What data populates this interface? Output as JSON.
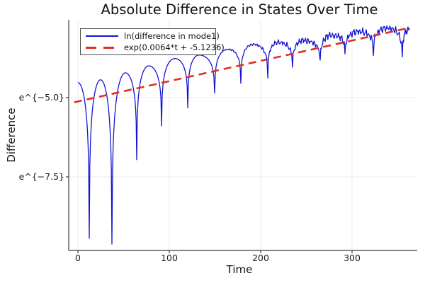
{
  "figure": {
    "title": "Absolute Difference in States Over Time",
    "xlabel": "Time",
    "ylabel": "Difference"
  },
  "colors": {
    "blue_line": "#1414d2",
    "red_line": "#e0301e"
  },
  "chart_data": {
    "type": "line",
    "title": "Absolute Difference in States Over Time",
    "xlabel": "Time",
    "ylabel": "Difference",
    "y_scale": "natural-log",
    "grid": true,
    "legend_position": "top-left",
    "x_ticks": [
      0,
      100,
      200,
      300
    ],
    "y_ticks": [
      {
        "label": "e^{−5.0}",
        "ln_value": -5.0
      },
      {
        "label": "e^{−7.5}",
        "ln_value": -7.5
      }
    ],
    "xlim": [
      -10.1,
      371.3
    ],
    "ylim_ln": [
      -9.82,
      -2.55
    ],
    "series": [
      {
        "name": "ln(difference in mode1)",
        "color": "#1414d2",
        "style": "solid",
        "shape": "oscillatory-abs-cos, odd-index keypoints are sharp dips, noise grows after t=140",
        "keypoints_t_ln": [
          [
            0,
            -4.53
          ],
          [
            12.4,
            -9.44
          ],
          [
            24.8,
            -4.44
          ],
          [
            37.2,
            -9.62
          ],
          [
            51.9,
            -4.22
          ],
          [
            64.3,
            -6.96
          ],
          [
            77.5,
            -4.0
          ],
          [
            91.5,
            -5.89
          ],
          [
            106.2,
            -3.77
          ],
          [
            120.2,
            -5.33
          ],
          [
            132.6,
            -3.66
          ],
          [
            149.6,
            -4.87
          ],
          [
            164.3,
            -3.48
          ],
          [
            178.3,
            -4.53
          ],
          [
            191.5,
            -3.32
          ],
          [
            207.8,
            -4.33
          ],
          [
            219.4,
            -3.26
          ],
          [
            234.9,
            -4.04
          ],
          [
            248.1,
            -3.21
          ],
          [
            265.1,
            -3.86
          ],
          [
            279.1,
            -3.04
          ],
          [
            292.2,
            -3.66
          ],
          [
            307.8,
            -2.92
          ],
          [
            323.3,
            -3.59
          ],
          [
            338.8,
            -2.81
          ],
          [
            355.0,
            -3.75
          ],
          [
            362.8,
            -2.86
          ]
        ]
      },
      {
        "name": "exp(0.0064*t + -5.1236)",
        "color": "#e0301e",
        "style": "dashed",
        "slope": 0.0064,
        "intercept": -5.1236,
        "t_range": [
          -4,
          361
        ]
      }
    ]
  }
}
